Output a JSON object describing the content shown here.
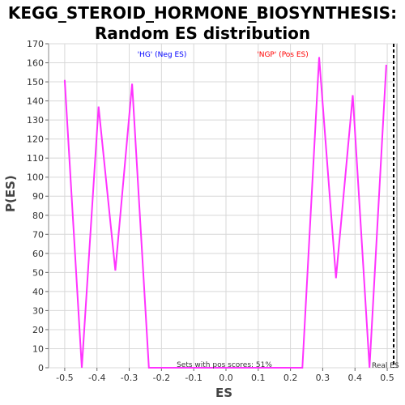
{
  "chart_data": {
    "type": "line",
    "title_line1": "KEGG_STEROID_HORMONE_BIOSYNTHESIS:",
    "title_line2": "Random ES distribution",
    "xlabel": "ES",
    "ylabel": "P(ES)",
    "xlim": [
      -0.55,
      0.53
    ],
    "ylim": [
      0,
      170
    ],
    "xticks": [
      "-0.5",
      "-0.4",
      "-0.3",
      "-0.2",
      "-0.1",
      "0.0",
      "0.1",
      "0.2",
      "0.3",
      "0.4",
      "0.5"
    ],
    "xtick_values": [
      -0.5,
      -0.4,
      -0.3,
      -0.2,
      -0.1,
      0.0,
      0.1,
      0.2,
      0.3,
      0.4,
      0.5
    ],
    "yticks": [
      0,
      10,
      20,
      30,
      40,
      50,
      60,
      70,
      80,
      90,
      100,
      110,
      120,
      130,
      140,
      150,
      160,
      170
    ],
    "grid": true,
    "series": [
      {
        "color": "#ff33ff",
        "x": [
          -0.5,
          -0.447,
          -0.395,
          -0.343,
          -0.291,
          -0.239,
          0.237,
          0.289,
          0.341,
          0.393,
          0.445,
          0.497
        ],
        "y": [
          151,
          0,
          137,
          51,
          149,
          0,
          0,
          163,
          47,
          143,
          0,
          159
        ]
      }
    ],
    "annotations": {
      "neg_label": "'HG' (Neg ES)",
      "pos_label": "'NGP' (Pos ES)",
      "sets_text": "Sets with pos scores: 51%",
      "real_es_label": "Real ES",
      "real_es_value": 0.52
    },
    "colors": {
      "neg": "#0000ff",
      "pos": "#ff0000",
      "line": "#ff33ff"
    }
  }
}
